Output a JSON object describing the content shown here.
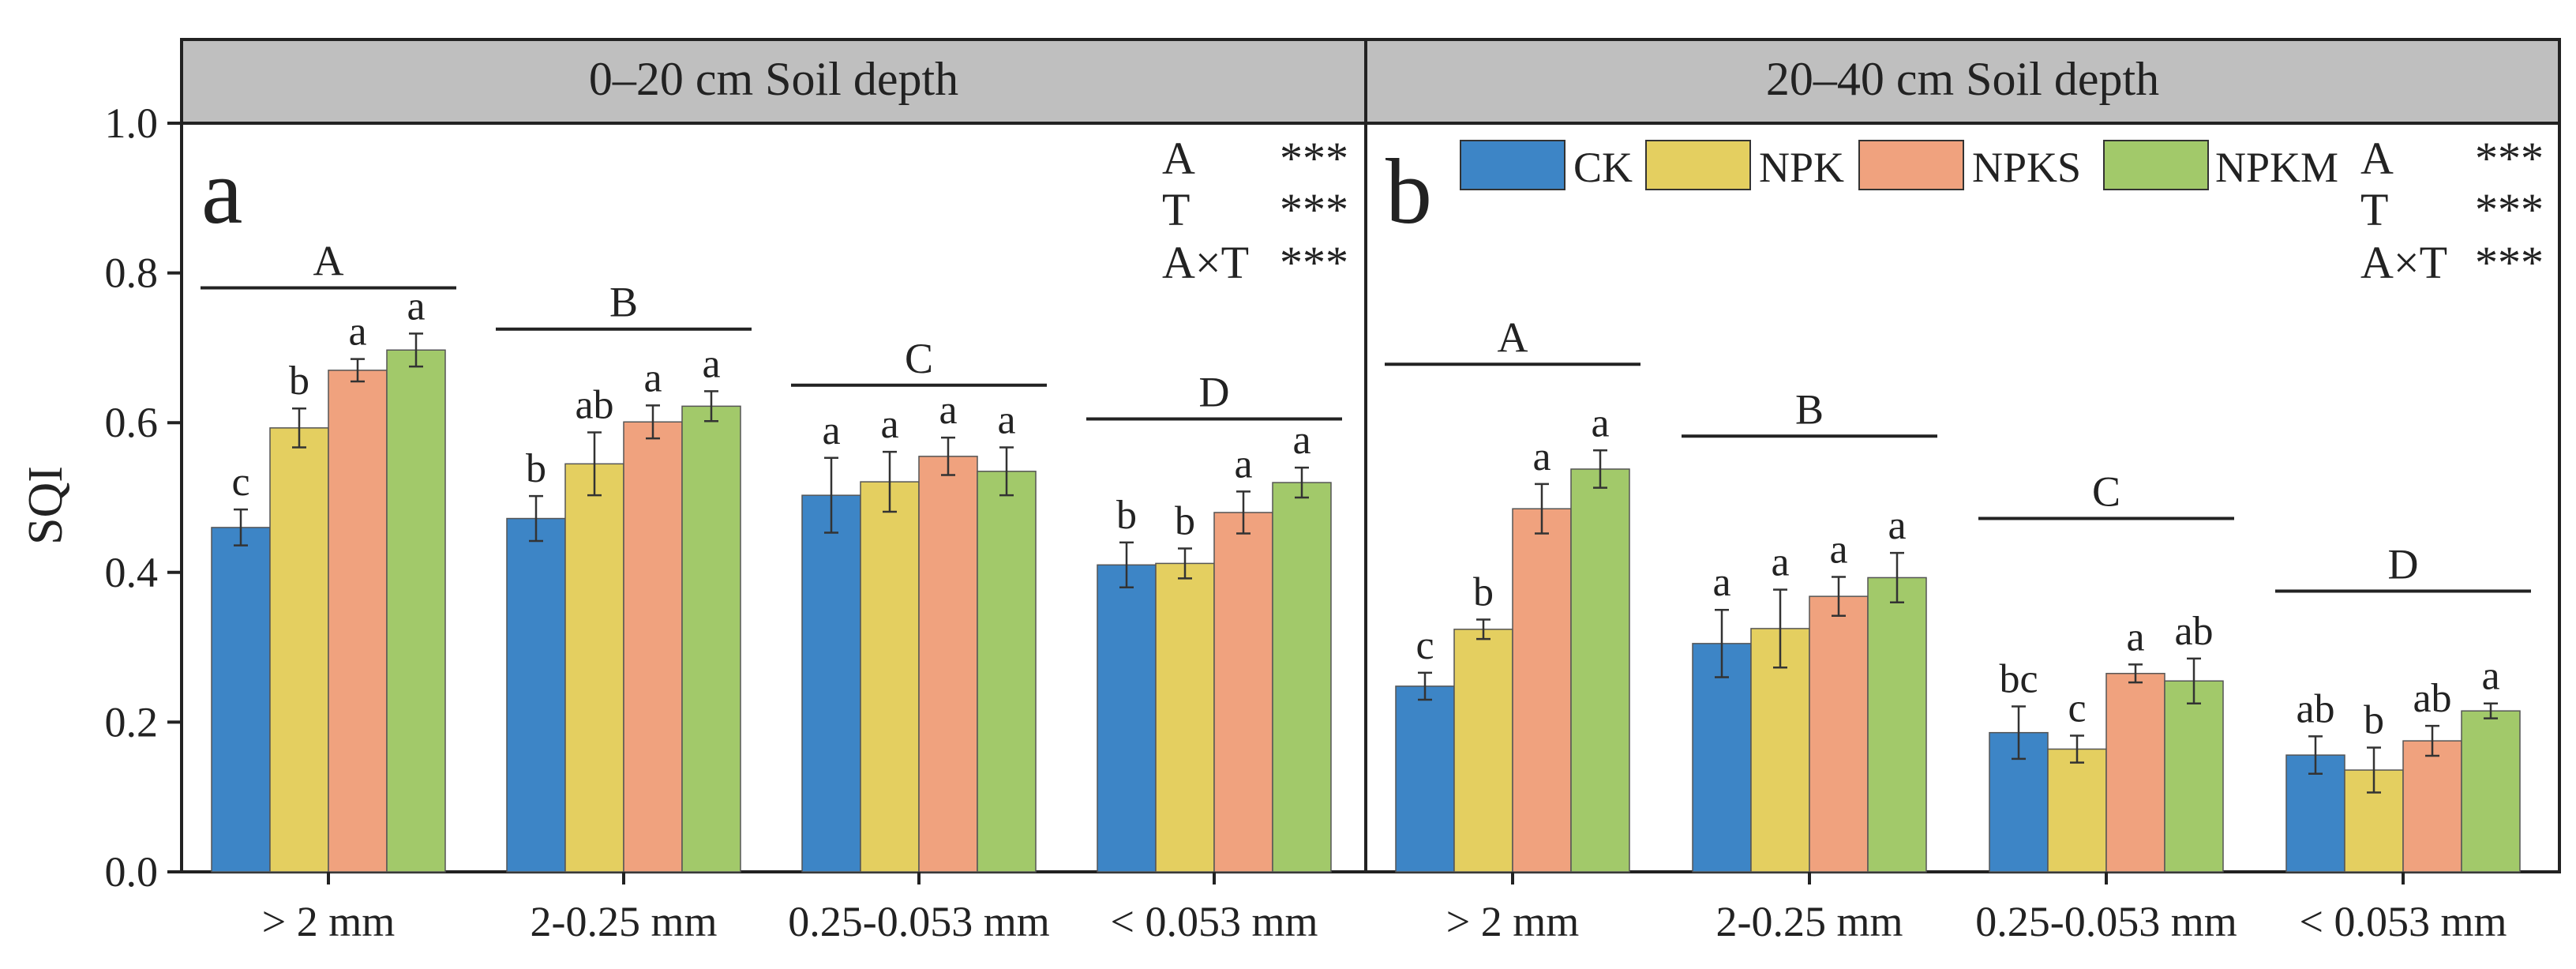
{
  "chart_data": {
    "type": "bar",
    "ylabel": "SQI",
    "ylim": [
      0,
      1.0
    ],
    "yticks": [
      "0.0",
      "0.2",
      "0.4",
      "0.6",
      "0.8",
      "1.0"
    ],
    "legend": {
      "placement": "top",
      "entries": [
        {
          "name": "CK",
          "color": "#3d85c6"
        },
        {
          "name": "NPK",
          "color": "#e4cf60"
        },
        {
          "name": "NPKS",
          "color": "#f0a27e"
        },
        {
          "name": "NPKM",
          "color": "#a2c96a"
        }
      ]
    },
    "panels": [
      {
        "title": "0–20 cm Soil depth",
        "letter": "a",
        "stats": [
          {
            "factor": "A",
            "sig": "***"
          },
          {
            "factor": "T",
            "sig": "***"
          },
          {
            "factor": "A×T",
            "sig": "***"
          }
        ],
        "categories": [
          "> 2 mm",
          "2-0.25 mm",
          "0.25-0.053 mm",
          "< 0.053 mm"
        ],
        "group_letters": [
          "A",
          "B",
          "C",
          "D"
        ],
        "group_line_levels": [
          0.78,
          0.725,
          0.65,
          0.605
        ],
        "series": [
          {
            "name": "CK",
            "values": [
              0.46,
              0.472,
              0.503,
              0.41
            ],
            "errors": [
              0.024,
              0.03,
              0.05,
              0.03
            ],
            "letters": [
              "c",
              "b",
              "a",
              "b"
            ]
          },
          {
            "name": "NPK",
            "values": [
              0.593,
              0.545,
              0.521,
              0.412
            ],
            "errors": [
              0.026,
              0.042,
              0.04,
              0.02
            ],
            "letters": [
              "b",
              "ab",
              "a",
              "b"
            ]
          },
          {
            "name": "NPKS",
            "values": [
              0.67,
              0.601,
              0.555,
              0.48
            ],
            "errors": [
              0.015,
              0.022,
              0.025,
              0.028
            ],
            "letters": [
              "a",
              "a",
              "a",
              "a"
            ]
          },
          {
            "name": "NPKM",
            "values": [
              0.697,
              0.622,
              0.535,
              0.52
            ],
            "errors": [
              0.022,
              0.02,
              0.032,
              0.02
            ],
            "letters": [
              "a",
              "a",
              "a",
              "a"
            ]
          }
        ]
      },
      {
        "title": "20–40 cm Soil depth",
        "letter": "b",
        "stats": [
          {
            "factor": "A",
            "sig": "***"
          },
          {
            "factor": "T",
            "sig": "***"
          },
          {
            "factor": "A×T",
            "sig": "***"
          }
        ],
        "categories": [
          "> 2 mm",
          "2-0.25 mm",
          "0.25-0.053 mm",
          "< 0.053 mm"
        ],
        "group_letters": [
          "A",
          "B",
          "C",
          "D"
        ],
        "group_line_levels": [
          0.678,
          0.582,
          0.472,
          0.375
        ],
        "series": [
          {
            "name": "CK",
            "values": [
              0.248,
              0.305,
              0.186,
              0.156
            ],
            "errors": [
              0.018,
              0.045,
              0.035,
              0.025
            ],
            "letters": [
              "c",
              "a",
              "bc",
              "ab"
            ]
          },
          {
            "name": "NPK",
            "values": [
              0.324,
              0.325,
              0.164,
              0.136
            ],
            "errors": [
              0.013,
              0.052,
              0.018,
              0.03
            ],
            "letters": [
              "b",
              "a",
              "c",
              "b"
            ]
          },
          {
            "name": "NPKS",
            "values": [
              0.485,
              0.368,
              0.265,
              0.175
            ],
            "errors": [
              0.033,
              0.026,
              0.012,
              0.02
            ],
            "letters": [
              "a",
              "a",
              "a",
              "ab"
            ]
          },
          {
            "name": "NPKM",
            "values": [
              0.538,
              0.393,
              0.255,
              0.215
            ],
            "errors": [
              0.025,
              0.033,
              0.03,
              0.01
            ],
            "letters": [
              "a",
              "a",
              "ab",
              "a"
            ]
          }
        ]
      }
    ]
  }
}
